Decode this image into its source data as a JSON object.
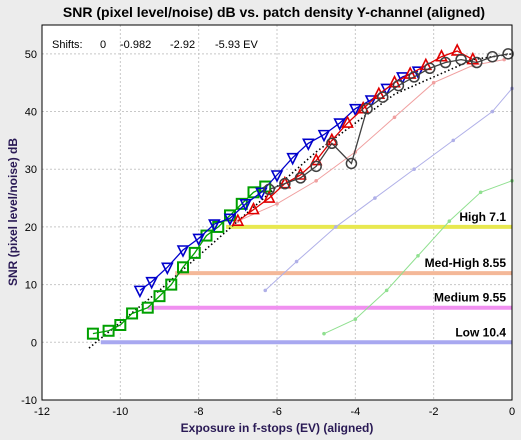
{
  "chart_data": {
    "type": "line",
    "title": "SNR (pixel level/noise) dB vs. patch density  Y-channel (aligned)",
    "xlabel": "Exposure in f-stops (EV) (aligned)",
    "ylabel": "SNR (pixel level/noise) dB",
    "xlim": [
      -12,
      0
    ],
    "ylim": [
      -10,
      55
    ],
    "xticks": [
      "-12",
      "-10",
      "-8",
      "-6",
      "-4",
      "-2",
      "0"
    ],
    "yticks": [
      "-10",
      "0",
      "10",
      "20",
      "30",
      "40",
      "50"
    ],
    "grid": true,
    "shifts": {
      "label": "Shifts:",
      "values": [
        "0",
        "-0.982",
        "-2.92",
        "-5.93 EV"
      ]
    },
    "levels": [
      {
        "name": "High",
        "label": "High  7.1",
        "y": 20,
        "x_start": -7.3,
        "color": "#e8e850"
      },
      {
        "name": "Med-High",
        "label": "Med-High  8.55",
        "y": 12,
        "x_start": -8.6,
        "color": "#f4b898"
      },
      {
        "name": "Medium",
        "label": "Medium  9.55",
        "y": 6,
        "x_start": -9.3,
        "color": "#f090f0"
      },
      {
        "name": "Low",
        "label": "Low  10.4",
        "y": 0,
        "x_start": -10.5,
        "color": "#a8a8f0"
      }
    ],
    "series": [
      {
        "marker": "square",
        "color": "#00a000",
        "x": [
          -10.7,
          -10.3,
          -10.0,
          -9.7,
          -9.3,
          -9.0,
          -8.7,
          -8.4,
          -8.1,
          -7.8,
          -7.5,
          -7.2,
          -6.9,
          -6.6,
          -6.3
        ],
        "values": [
          1.5,
          2,
          3,
          5,
          6,
          8,
          10,
          13,
          15.5,
          18.5,
          20,
          22,
          24,
          26,
          27
        ]
      },
      {
        "marker": "triangle-down",
        "color": "#0000cc",
        "x": [
          -9.5,
          -9.2,
          -8.8,
          -8.4,
          -8.0,
          -7.6,
          -7.2,
          -6.8,
          -6.4,
          -6.0,
          -5.6,
          -5.2,
          -4.8,
          -4.4,
          -4.0,
          -3.6,
          -3.2,
          -2.8,
          -2.4
        ],
        "values": [
          9,
          10.5,
          13,
          16,
          18,
          20.5,
          21.5,
          24,
          26,
          29,
          32,
          34.5,
          36,
          38,
          40.5,
          42,
          44,
          46,
          47
        ]
      },
      {
        "marker": "triangle",
        "color": "#e00000",
        "x": [
          -7.0,
          -6.6,
          -6.2,
          -5.8,
          -5.4,
          -5.0,
          -4.6,
          -4.2,
          -3.8,
          -3.4,
          -3.0,
          -2.6,
          -2.2,
          -1.8,
          -1.4,
          -1.0
        ],
        "values": [
          21,
          23,
          25,
          27.5,
          29,
          31.5,
          35,
          38,
          40.5,
          43,
          45,
          46.5,
          48,
          49.5,
          50.5,
          49
        ]
      },
      {
        "marker": "circle",
        "color": "#404040",
        "x": [
          -6.2,
          -5.8,
          -5.4,
          -5.0,
          -4.6,
          -4.1,
          -3.7,
          -3.3,
          -2.9,
          -2.5,
          -2.1,
          -1.7,
          -1.3,
          -0.9,
          -0.5,
          -0.1
        ],
        "values": [
          26.5,
          27.5,
          28.5,
          30.5,
          34.5,
          31,
          40.5,
          42.5,
          44.5,
          46,
          47.5,
          48.5,
          49,
          48.5,
          49.5,
          50
        ]
      }
    ],
    "faint_series": [
      {
        "color": "#f0a0a0",
        "x": [
          -7.0,
          -6.0,
          -5.0,
          -4.0,
          -3.0,
          -2.0,
          -1.0,
          -0.2
        ],
        "values": [
          21,
          24,
          28,
          33,
          39,
          45,
          48,
          49
        ]
      },
      {
        "color": "#b0b0e8",
        "x": [
          -6.3,
          -5.5,
          -4.5,
          -3.5,
          -2.5,
          -1.5,
          -0.5,
          0.0
        ],
        "values": [
          9,
          14,
          20,
          25,
          30,
          35,
          40,
          44
        ]
      },
      {
        "color": "#90e090",
        "x": [
          -4.8,
          -4.0,
          -3.2,
          -2.4,
          -1.6,
          -0.8,
          0.0
        ],
        "values": [
          1.5,
          4,
          9,
          15,
          21,
          26,
          28
        ]
      }
    ],
    "reference_line": {
      "style": "dotted",
      "x": [
        -10.8,
        -9.0,
        -7.0,
        -5.0,
        -3.0,
        -1.0,
        0.0
      ],
      "values": [
        -1,
        9,
        21,
        33,
        43,
        49,
        50
      ]
    }
  }
}
